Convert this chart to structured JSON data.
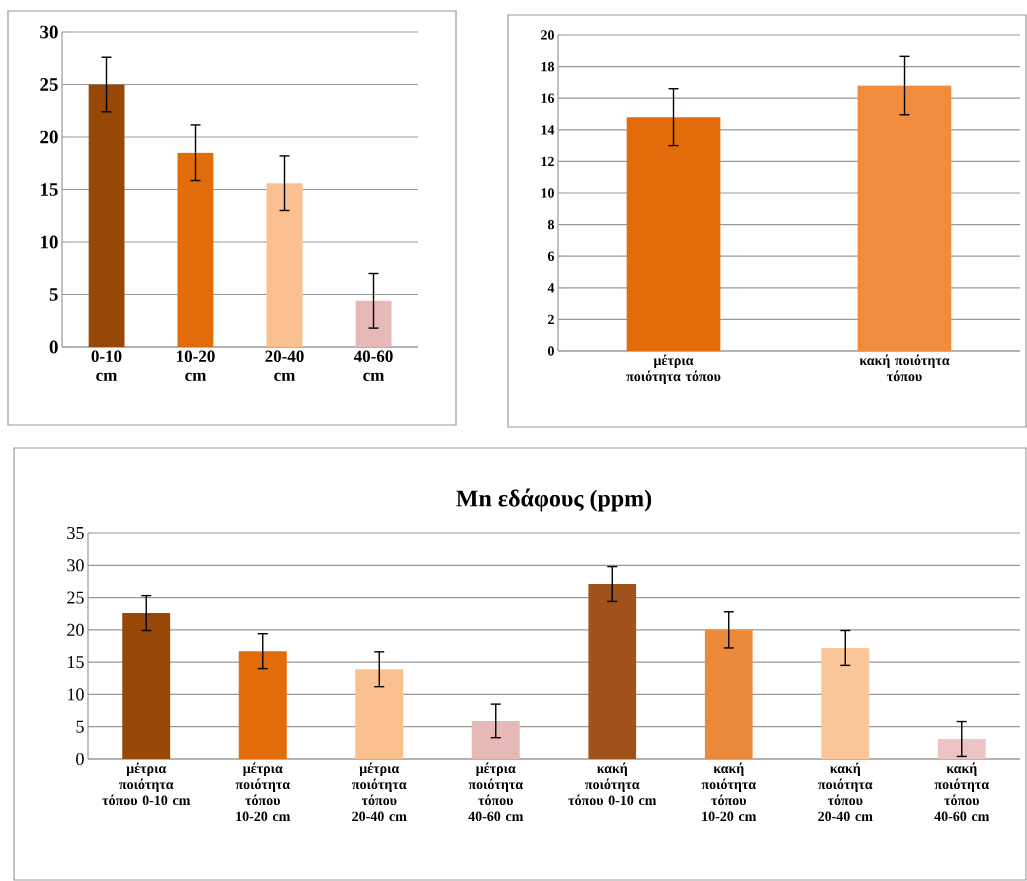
{
  "chart_data": [
    {
      "type": "bar",
      "categories": [
        "0-10 cm",
        "10-20 cm",
        "20-40 cm",
        "40-60 cm"
      ],
      "values": [
        25.0,
        18.5,
        15.6,
        4.4
      ],
      "errors": [
        2.6,
        2.65,
        2.6,
        2.6
      ],
      "colors": [
        "#974706",
        "#e36c0a",
        "#fac090",
        "#e6b9b8"
      ],
      "ylim": [
        0,
        30
      ],
      "yticks": [
        0,
        5,
        10,
        15,
        20,
        25,
        30
      ],
      "grid": "y"
    },
    {
      "type": "bar",
      "categories": [
        "μέτρια ποιότητα τόπου",
        "κακή ποιότητα τόπου"
      ],
      "values": [
        14.8,
        16.8
      ],
      "errors": [
        1.8,
        1.85
      ],
      "colors": [
        "#e36c0a",
        "#f08c3c"
      ],
      "ylim": [
        0,
        20
      ],
      "yticks": [
        0,
        2,
        4,
        6,
        8,
        10,
        12,
        14,
        16,
        18,
        20
      ],
      "grid": "y"
    },
    {
      "type": "bar",
      "title": "Mn εδάφους (ppm)",
      "categories": [
        "μέτρια ποιότητα τόπου 0-10 cm",
        "μέτρια ποιότητα τόπου 10-20 cm",
        "μέτρια ποιότητα τόπου 20-40 cm",
        "μέτρια ποιότητα τόπου 40-60 cm",
        "κακή ποιότητα τόπου 0-10 cm",
        "κακή ποιότητα τόπου 10-20 cm",
        "κακή ποιότητα τόπου 20-40 cm",
        "κακή ποιότητα τόπου 40-60 cm"
      ],
      "values": [
        22.6,
        16.7,
        13.9,
        5.9,
        27.1,
        20.0,
        17.2,
        3.1
      ],
      "errors": [
        2.7,
        2.7,
        2.7,
        2.6,
        2.7,
        2.8,
        2.7,
        2.7
      ],
      "colors": [
        "#974706",
        "#e36c0a",
        "#fac090",
        "#e6b9b8",
        "#a0521c",
        "#ec8a3c",
        "#fbc79a",
        "#ecc4c3"
      ],
      "ylim": [
        0,
        35
      ],
      "yticks": [
        0,
        5,
        10,
        15,
        20,
        25,
        30,
        35
      ],
      "grid": "y"
    }
  ]
}
